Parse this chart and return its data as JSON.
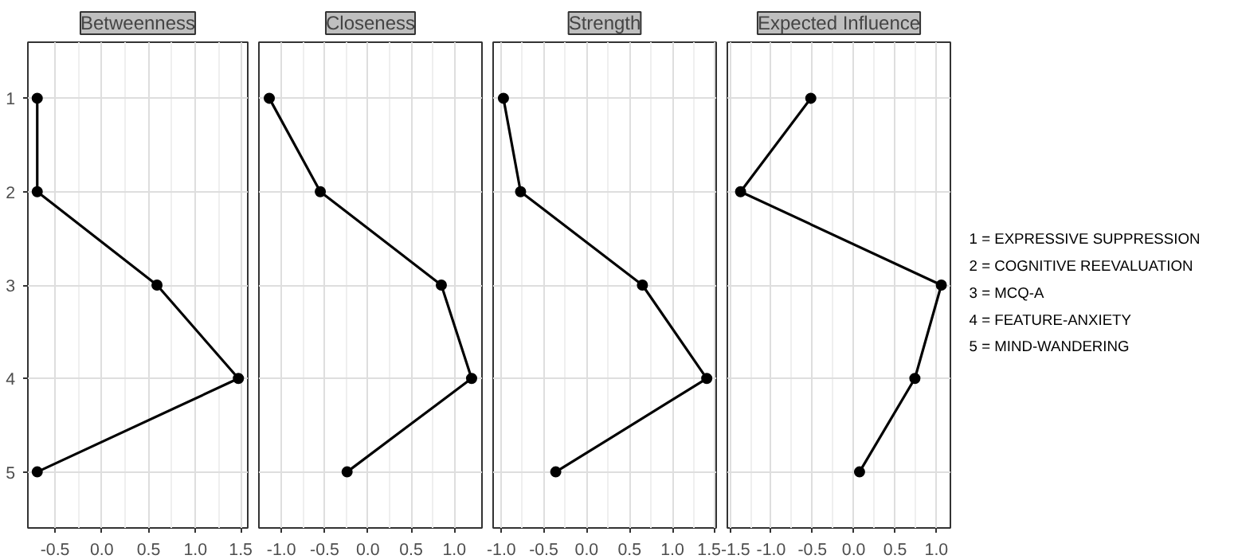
{
  "chart_data": [
    {
      "type": "line",
      "title": "Betweenness",
      "orientation": "horizontal",
      "categories": [
        "1",
        "2",
        "3",
        "4",
        "5"
      ],
      "values": [
        -0.69,
        -0.69,
        0.59,
        1.46,
        -0.69
      ],
      "color": "#000000",
      "marker": "circle",
      "line_style": "solid",
      "xlim": [
        -0.79,
        1.56
      ],
      "xticks": [
        {
          "value": -0.5,
          "label": "-0.5"
        },
        {
          "value": 0,
          "label": "0.0"
        },
        {
          "value": 0.5,
          "label": "0.5"
        },
        {
          "value": 1,
          "label": "1.0"
        },
        {
          "value": 1.5,
          "label": "1.5"
        }
      ],
      "grid": true
    },
    {
      "type": "line",
      "title": "Closeness",
      "orientation": "horizontal",
      "categories": [
        "1",
        "2",
        "3",
        "4",
        "5"
      ],
      "values": [
        -1.14,
        -0.55,
        0.85,
        1.2,
        -0.24
      ],
      "color": "#000000",
      "marker": "circle",
      "line_style": "solid",
      "xlim": [
        -1.26,
        1.32
      ],
      "xticks": [
        {
          "value": -1,
          "label": "-1.0"
        },
        {
          "value": -0.5,
          "label": "-0.5"
        },
        {
          "value": 0,
          "label": "0.0"
        },
        {
          "value": 0.5,
          "label": "0.5"
        },
        {
          "value": 1,
          "label": "1.0"
        }
      ],
      "grid": true,
      "tick_labels": "x"
    },
    {
      "type": "line",
      "title": "Strength",
      "orientation": "horizontal",
      "categories": [
        "1",
        "2",
        "3",
        "4",
        "5"
      ],
      "values": [
        -0.97,
        -0.77,
        0.65,
        1.4,
        -0.36
      ],
      "color": "#000000",
      "marker": "circle",
      "line_style": "solid",
      "xlim": [
        -1.09,
        1.51
      ],
      "xticks": [
        {
          "value": -1,
          "label": "-1.0"
        },
        {
          "value": -0.5,
          "label": "-0.5"
        },
        {
          "value": 0,
          "label": "0.0"
        },
        {
          "value": 0.5,
          "label": "0.5"
        },
        {
          "value": 1,
          "label": "1.0"
        },
        {
          "value": 1.5,
          "label": "1.5"
        }
      ],
      "grid": true,
      "tick_labels": "x"
    },
    {
      "type": "line",
      "title": "Expected Influence",
      "orientation": "horizontal",
      "categories": [
        "1",
        "2",
        "3",
        "4",
        "5"
      ],
      "values": [
        -0.52,
        -1.37,
        1.06,
        0.74,
        0.07
      ],
      "color": "#000000",
      "marker": "circle",
      "line_style": "solid",
      "xlim": [
        -1.53,
        1.17
      ],
      "xticks": [
        {
          "value": -1.5,
          "label": "-1.5"
        },
        {
          "value": -1,
          "label": "-1.0"
        },
        {
          "value": -0.5,
          "label": "-0.5"
        },
        {
          "value": 0,
          "label": "0.0"
        },
        {
          "value": 0.5,
          "label": "0.5"
        },
        {
          "value": 1,
          "label": "1.0"
        }
      ],
      "grid": true,
      "tick_labels": "x",
      "annotations": [
        "1 = EXPRESSIVE SUPPRESSION",
        "2 = COGNITIVE REEVALUATION",
        "3 = MCQ-A",
        "4 = FEATURE-ANXIETY",
        "5 = MIND-WANDERING"
      ]
    }
  ]
}
